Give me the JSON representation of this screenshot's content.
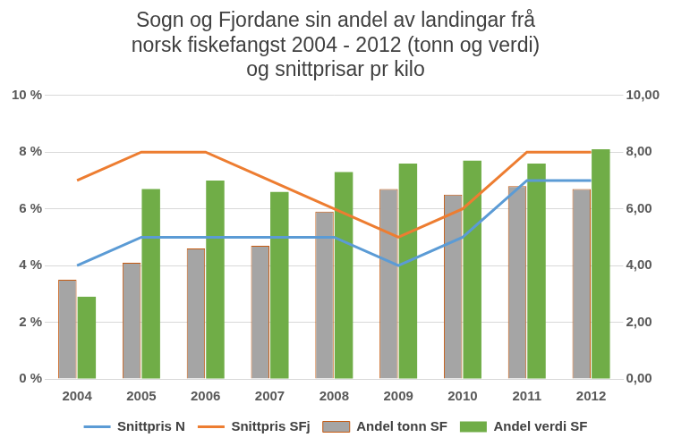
{
  "chart_data": {
    "type": "bar",
    "title": "Sogn og Fjordane sin andel av landingar frå\nnorsk fiskefangst 2004 - 2012 (tonn og verdi)\nog snittprisar pr kilo",
    "categories": [
      "2004",
      "2005",
      "2006",
      "2007",
      "2008",
      "2009",
      "2010",
      "2011",
      "2012"
    ],
    "series": [
      {
        "name": "Andel tonn SF",
        "type": "bar",
        "color": "#a5a5a5",
        "values": [
          3.5,
          4.1,
          4.6,
          4.7,
          5.9,
          6.7,
          6.5,
          6.8,
          6.7
        ]
      },
      {
        "name": "Andel verdi SF",
        "type": "bar",
        "color": "#70ad47",
        "values": [
          2.9,
          6.7,
          7.0,
          6.6,
          7.3,
          7.6,
          7.7,
          7.6,
          8.1
        ]
      },
      {
        "name": "Snittpris N",
        "type": "line",
        "axis": "y2",
        "color": "#5b9bd5",
        "values": [
          4,
          5,
          5,
          5,
          5,
          4,
          5,
          7,
          7
        ]
      },
      {
        "name": "Snittpris SFj",
        "type": "line",
        "axis": "y2",
        "color": "#ed7d31",
        "values": [
          7,
          8,
          8,
          7,
          6,
          5,
          6,
          8,
          8
        ]
      }
    ],
    "ylim": [
      0,
      10
    ],
    "yticks": [
      {
        "value": 0,
        "label": "0 %"
      },
      {
        "value": 2,
        "label": "2 %"
      },
      {
        "value": 4,
        "label": "4 %"
      },
      {
        "value": 6,
        "label": "6 %"
      },
      {
        "value": 8,
        "label": "8 %"
      },
      {
        "value": 10,
        "label": "10 %"
      }
    ],
    "y2lim": [
      0,
      10
    ],
    "y2ticks": [
      {
        "value": 0,
        "label": "0,00"
      },
      {
        "value": 2,
        "label": "2,00"
      },
      {
        "value": 4,
        "label": "4,00"
      },
      {
        "value": 6,
        "label": "6,00"
      },
      {
        "value": 8,
        "label": "8,00"
      },
      {
        "value": 10,
        "label": "10,00"
      }
    ],
    "grid": true,
    "legend": "bottom"
  }
}
